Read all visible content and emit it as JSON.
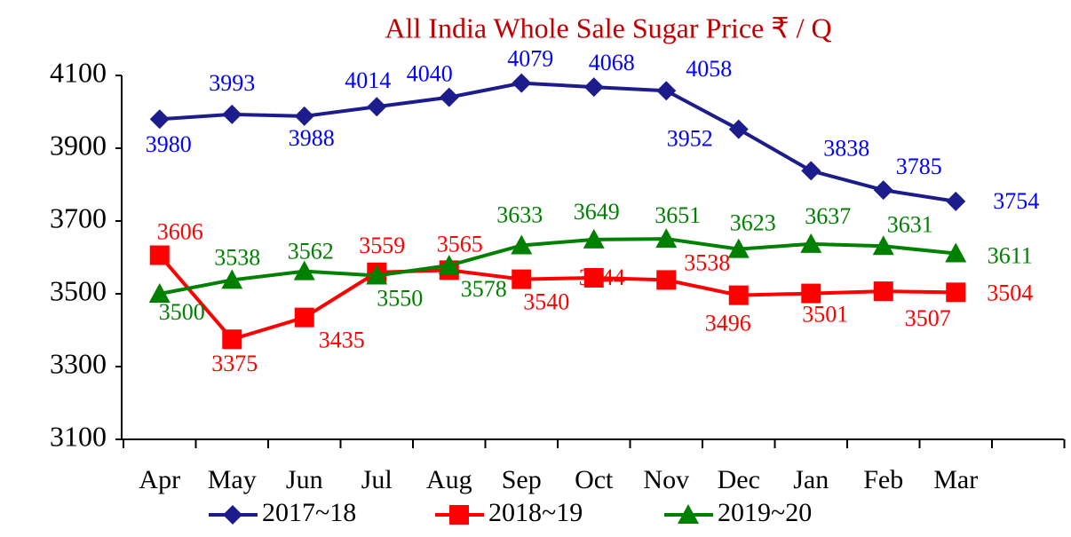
{
  "chart_data": {
    "type": "line",
    "title": "All India Whole Sale Sugar Price ₹ / Q",
    "categories": [
      "Apr",
      "May",
      "Jun",
      "Jul",
      "Aug",
      "Sep",
      "Oct",
      "Nov",
      "Dec",
      "Jan",
      "Feb",
      "Mar",
      null
    ],
    "series": [
      {
        "name": "2017~18",
        "color": "#1c1c8c",
        "label_color": "#0000ff",
        "marker": "diamond",
        "values": [
          3980,
          3993,
          3988,
          4014,
          4040,
          4079,
          4068,
          4058,
          3952,
          3838,
          3785,
          3754,
          null
        ]
      },
      {
        "name": "2018~19",
        "color": "#ff0000",
        "label_color": "#ff0000",
        "marker": "square",
        "values": [
          3606,
          3375,
          3435,
          3559,
          3565,
          3540,
          3544,
          3538,
          3496,
          3501,
          3507,
          3504,
          null
        ]
      },
      {
        "name": "2019~20",
        "color": "#008000",
        "label_color": "#008000",
        "marker": "triangle",
        "values": [
          3500,
          3538,
          3562,
          3550,
          3578,
          3633,
          3649,
          3651,
          3623,
          3637,
          3631,
          3611,
          null
        ]
      }
    ],
    "ylim": [
      3100,
      4100
    ],
    "yticks": [
      3100,
      3300,
      3500,
      3700,
      3900,
      4100
    ],
    "grid": false
  }
}
